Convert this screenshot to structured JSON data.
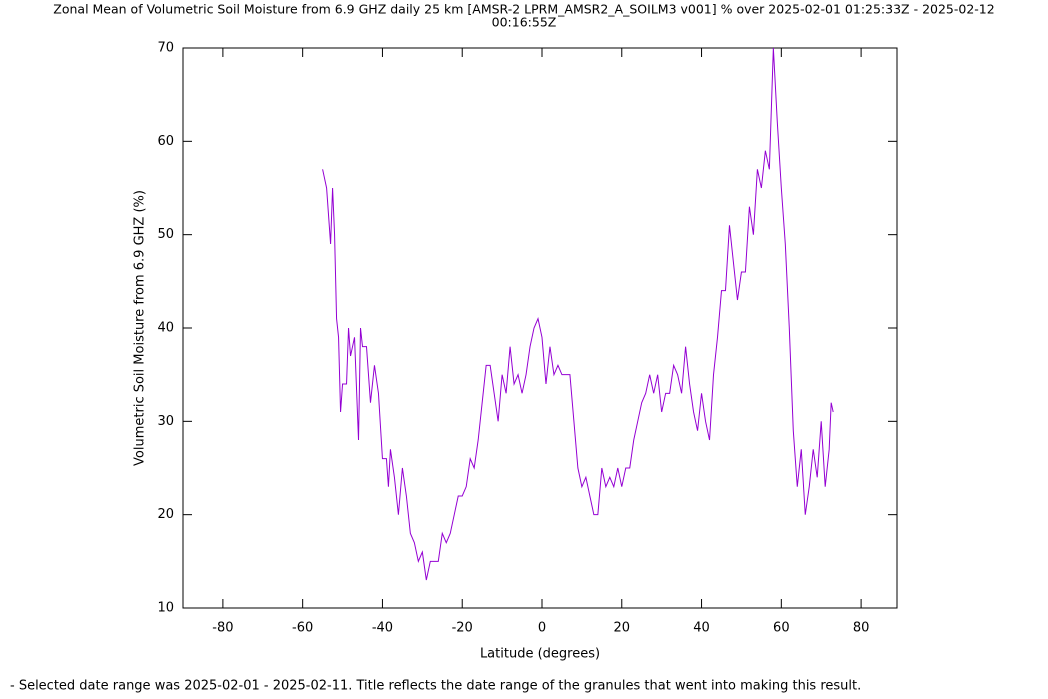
{
  "chart_data": {
    "type": "line",
    "title": [
      "Zonal Mean of Volumetric Soil Moisture from 6.9 GHZ daily 25 km [AMSR-2 LPRM_AMSR2_A_SOILM3 v001] % over 2025-02-01 01:25:33Z - 2025-02-12",
      "00:16:55Z"
    ],
    "xlabel": "Latitude (degrees)",
    "ylabel": "Volumetric Soil Moisture from 6.9 GHZ (%)",
    "footnote": "- Selected date range was 2025-02-01 - 2025-02-11. Title reflects the date range of the granules that went into making this result.",
    "xlim": [
      -90,
      89
    ],
    "ylim": [
      10,
      70
    ],
    "xticks": [
      -80,
      -60,
      -40,
      -20,
      0,
      20,
      40,
      60,
      80
    ],
    "yticks": [
      10,
      20,
      30,
      40,
      50,
      60,
      70
    ],
    "color": "#9400d3",
    "x": [
      -55,
      -54,
      -53,
      -52.5,
      -52,
      -51.5,
      -51,
      -50.5,
      -50,
      -49,
      -48.5,
      -48,
      -47,
      -46,
      -45.5,
      -45,
      -44,
      -43,
      -42,
      -41,
      -40,
      -39,
      -38.5,
      -38,
      -37,
      -36,
      -35,
      -34,
      -33,
      -32,
      -31,
      -30,
      -29,
      -28,
      -27,
      -26,
      -25,
      -24,
      -23,
      -22,
      -21,
      -20,
      -19,
      -18,
      -17,
      -16,
      -15,
      -14,
      -13,
      -12,
      -11,
      -10,
      -9,
      -8,
      -7,
      -6,
      -5,
      -4,
      -3,
      -2,
      -1,
      0,
      1,
      2,
      3,
      4,
      5,
      6,
      7,
      8,
      9,
      10,
      11,
      12,
      13,
      14,
      15,
      16,
      17,
      18,
      19,
      20,
      21,
      22,
      23,
      24,
      25,
      26,
      27,
      28,
      29,
      30,
      31,
      32,
      33,
      34,
      35,
      36,
      37,
      38,
      39,
      40,
      41,
      42,
      43,
      44,
      45,
      46,
      47,
      48,
      49,
      50,
      51,
      52,
      53,
      54,
      55,
      56,
      57,
      58,
      59,
      60,
      61,
      62,
      63,
      64,
      65,
      66,
      67,
      68,
      69,
      70,
      71,
      72,
      72.5,
      73
    ],
    "values": [
      57,
      55,
      49,
      55,
      50,
      41,
      39,
      31,
      34,
      34,
      40,
      37,
      39,
      28,
      40,
      38,
      38,
      32,
      36,
      33,
      26,
      26,
      23,
      27,
      24,
      20,
      25,
      22,
      18,
      17,
      15,
      16,
      13,
      15,
      15,
      15,
      18,
      17,
      18,
      20,
      22,
      22,
      23,
      26,
      25,
      28,
      32,
      36,
      36,
      33,
      30,
      35,
      33,
      38,
      34,
      35,
      33,
      35,
      38,
      40,
      41,
      39,
      34,
      38,
      35,
      36,
      35,
      35,
      35,
      30,
      25,
      23,
      24,
      22,
      20,
      20,
      25,
      23,
      24,
      23,
      25,
      23,
      25,
      25,
      28,
      30,
      32,
      33,
      35,
      33,
      35,
      31,
      33,
      33,
      36,
      35,
      33,
      38,
      34,
      31,
      29,
      33,
      30,
      28,
      35,
      39,
      44,
      44,
      51,
      47,
      43,
      46,
      46,
      53,
      50,
      57,
      55,
      59,
      57,
      70,
      62,
      55,
      49,
      40,
      29,
      23,
      27,
      20,
      23,
      27,
      24,
      30,
      23,
      27,
      32,
      31
    ]
  }
}
